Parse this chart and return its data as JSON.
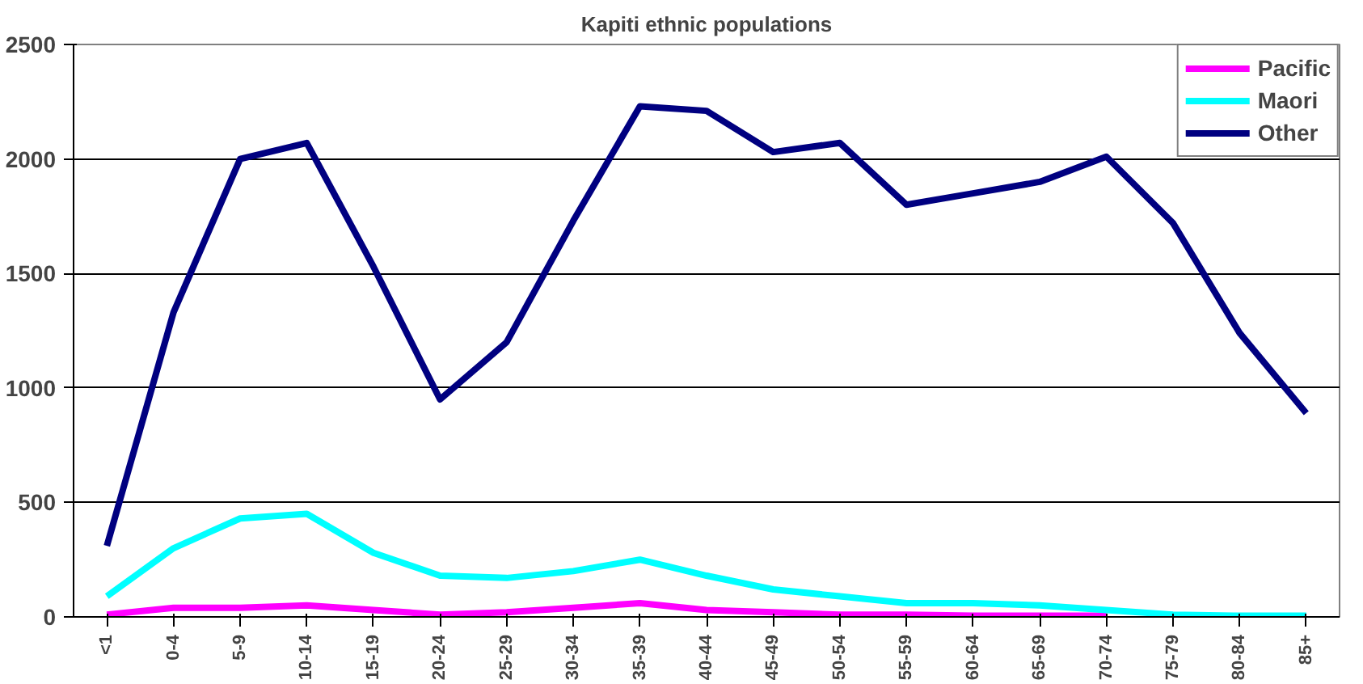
{
  "chart_data": {
    "type": "line",
    "title": "Kapiti ethnic populations",
    "categories": [
      "<1",
      "0-4",
      "5-9",
      "10-14",
      "15-19",
      "20-24",
      "25-29",
      "30-34",
      "35-39",
      "40-44",
      "45-49",
      "50-54",
      "55-59",
      "60-64",
      "65-69",
      "70-74",
      "75-79",
      "80-84",
      "85+"
    ],
    "series": [
      {
        "name": "Pacific",
        "color": "#ff00ff",
        "values": [
          10,
          40,
          40,
          50,
          30,
          10,
          20,
          40,
          60,
          30,
          20,
          10,
          10,
          5,
          5,
          5,
          null,
          null,
          null
        ]
      },
      {
        "name": "Maori",
        "color": "#00ffff",
        "values": [
          90,
          300,
          430,
          450,
          280,
          180,
          170,
          200,
          250,
          180,
          120,
          90,
          60,
          60,
          50,
          30,
          10,
          5,
          5
        ]
      },
      {
        "name": "Other",
        "color": "#000080",
        "values": [
          310,
          1330,
          2000,
          2070,
          1530,
          950,
          1200,
          1730,
          2230,
          2210,
          2030,
          2070,
          1800,
          1850,
          1900,
          2010,
          1720,
          1240,
          890
        ]
      }
    ],
    "ylim": [
      0,
      2500
    ],
    "yticks": [
      0,
      500,
      1000,
      1500,
      2000,
      2500
    ],
    "grid": "y",
    "legend": "top right",
    "marker": "none",
    "line_style": "solid"
  }
}
